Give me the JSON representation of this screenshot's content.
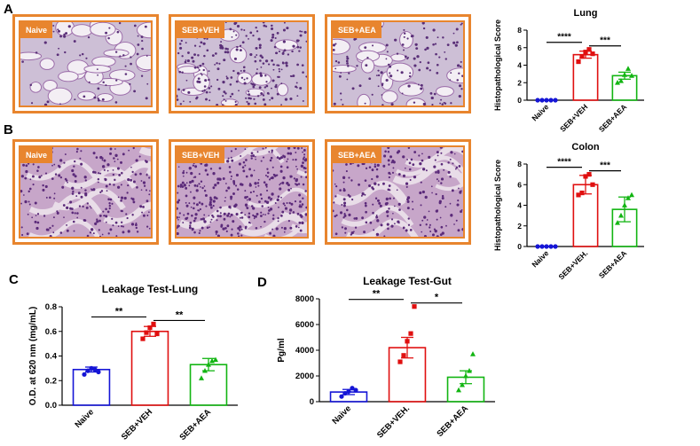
{
  "panels": {
    "A": "A",
    "B": "B",
    "C": "C",
    "D": "D"
  },
  "micrographs": {
    "lung": [
      {
        "label": "Naive",
        "tissue": "lung-sparse"
      },
      {
        "label": "SEB+VEH",
        "tissue": "lung-dense"
      },
      {
        "label": "SEB+AEA",
        "tissue": "lung-medium"
      }
    ],
    "colon": [
      {
        "label": "Naive",
        "tissue": "colon"
      },
      {
        "label": "SEB+VEH",
        "tissue": "colon-dense"
      },
      {
        "label": "SEB+AEA",
        "tissue": "colon"
      }
    ]
  },
  "colors": {
    "naive": "#1515d6",
    "veh": "#e01010",
    "aea": "#12b512",
    "frame": "#e8852e"
  },
  "chart_data": [
    {
      "id": "lung",
      "type": "bar",
      "title": "Lung",
      "xlabel": "",
      "ylabel": "Histopathological Score",
      "categories": [
        "Naive",
        "SEB+VEH",
        "SEB+AEA"
      ],
      "values": [
        0,
        5.2,
        2.8
      ],
      "errors": [
        0,
        0.4,
        0.4
      ],
      "points": [
        [
          0,
          0,
          0,
          0,
          0
        ],
        [
          4.4,
          5.0,
          5.5,
          5.8,
          5.3
        ],
        [
          2.0,
          2.2,
          2.9,
          3.6,
          2.8
        ]
      ],
      "markers": [
        "circle",
        "square",
        "triangle"
      ],
      "ylim": [
        0,
        8
      ],
      "yticks": [
        0,
        2,
        4,
        6,
        8
      ],
      "significance": [
        {
          "from": 0,
          "to": 1,
          "label": "****"
        },
        {
          "from": 1,
          "to": 2,
          "label": "***"
        }
      ]
    },
    {
      "id": "colon",
      "type": "bar",
      "title": "Colon",
      "xlabel": "",
      "ylabel": "Histopathological Score",
      "categories": [
        "Naive",
        "SEB+VEH.",
        "SEB+AEA"
      ],
      "values": [
        0,
        6.0,
        3.6
      ],
      "errors": [
        0,
        0.9,
        1.2
      ],
      "points": [
        [
          0,
          0,
          0,
          0,
          0
        ],
        [
          5.0,
          5.2,
          6.8,
          7.0,
          6.0
        ],
        [
          2.3,
          3.0,
          4.0,
          4.7,
          5.0
        ]
      ],
      "markers": [
        "circle",
        "square",
        "triangle"
      ],
      "ylim": [
        0,
        8
      ],
      "yticks": [
        0,
        2,
        4,
        6,
        8
      ],
      "significance": [
        {
          "from": 0,
          "to": 1,
          "label": "****"
        },
        {
          "from": 1,
          "to": 2,
          "label": "***"
        }
      ]
    },
    {
      "id": "leak-lung",
      "type": "bar",
      "title": "Leakage Test-Lung",
      "xlabel": "",
      "ylabel": "O.D. at 620 nm (mg/mL)",
      "categories": [
        "Naive",
        "SEB+VEH",
        "SEB+AEA"
      ],
      "values": [
        0.29,
        0.6,
        0.33
      ],
      "errors": [
        0.02,
        0.04,
        0.05
      ],
      "points": [
        [
          0.25,
          0.28,
          0.3,
          0.29,
          0.27
        ],
        [
          0.54,
          0.59,
          0.63,
          0.66,
          0.58
        ],
        [
          0.22,
          0.28,
          0.33,
          0.36,
          0.37
        ]
      ],
      "markers": [
        "circle",
        "square",
        "triangle"
      ],
      "ylim": [
        0,
        0.8
      ],
      "yticks": [
        0.0,
        0.2,
        0.4,
        0.6,
        0.8
      ],
      "significance": [
        {
          "from": 0,
          "to": 1,
          "label": "**"
        },
        {
          "from": 1,
          "to": 2,
          "label": "**"
        }
      ]
    },
    {
      "id": "leak-gut",
      "type": "bar",
      "title": "Leakage Test-Gut",
      "xlabel": "",
      "ylabel": "Pg/ml",
      "categories": [
        "Naive",
        "SEB+VEH.",
        "SEB+AEA"
      ],
      "values": [
        750,
        4200,
        1900
      ],
      "errors": [
        200,
        800,
        500
      ],
      "points": [
        [
          400,
          650,
          800,
          1050,
          900
        ],
        [
          3100,
          3600,
          4700,
          5300,
          7400
        ],
        [
          900,
          1300,
          2000,
          2400,
          3700
        ]
      ],
      "markers": [
        "circle",
        "square",
        "triangle"
      ],
      "ylim": [
        0,
        8000
      ],
      "yticks": [
        0,
        2000,
        4000,
        6000,
        8000
      ],
      "significance": [
        {
          "from": 0,
          "to": 1,
          "label": "**"
        },
        {
          "from": 1,
          "to": 2,
          "label": "*"
        }
      ]
    }
  ]
}
